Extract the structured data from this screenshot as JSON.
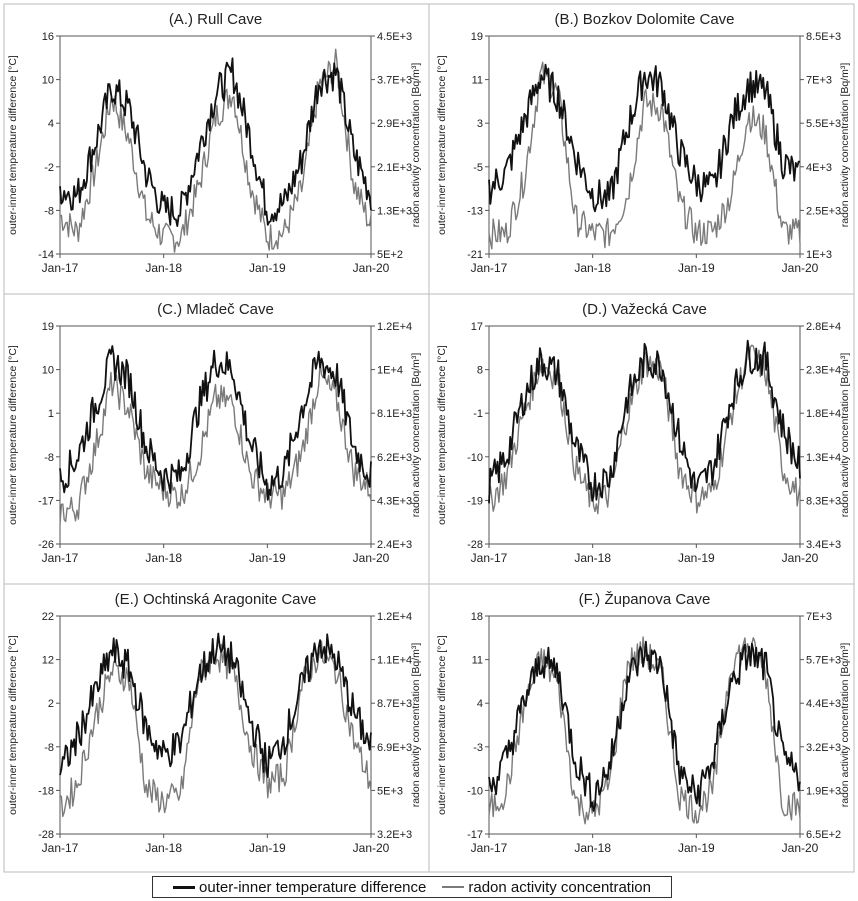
{
  "colors": {
    "temperature": "#111111",
    "radon": "#7a7a7a",
    "frame": "#bbbbbb"
  },
  "legend": {
    "temperature_label": "outer-inner temperature difference",
    "radon_label": "radon activity concentration"
  },
  "chart_data": [
    {
      "type": "line",
      "title": "(A.) Rull Cave",
      "ylabel": "outer-inner temperature difference [°C]",
      "y2label": "radon activity concentration [Bq/m³]",
      "x_ticks": [
        "Jan-17",
        "Jan-18",
        "Jan-19",
        "Jan-20"
      ],
      "y_ticks": [
        "-14",
        "-8",
        "-2",
        "4",
        "10",
        "16"
      ],
      "y2_ticks": [
        "5E+2",
        "1.3E+3",
        "2.1E+3",
        "2.9E+3",
        "3.7E+3",
        "4.5E+3"
      ],
      "ylim": [
        -14,
        16
      ],
      "y2lim": [
        500,
        4500
      ],
      "series": [
        {
          "name": "outer-inner temperature difference",
          "axis": "left",
          "x": [
            "2017-01",
            "2017-03",
            "2017-05",
            "2017-07",
            "2017-09",
            "2017-11",
            "2018-01",
            "2018-03",
            "2018-05",
            "2018-07",
            "2018-09",
            "2018-11",
            "2019-01",
            "2019-03",
            "2019-05",
            "2019-07",
            "2019-09",
            "2019-11",
            "2020-01"
          ],
          "values": [
            -5,
            -6,
            1,
            9,
            6,
            -3,
            -8,
            -8,
            0,
            8,
            11,
            2,
            -8,
            -7,
            -1,
            10,
            11,
            0,
            -6
          ]
        },
        {
          "name": "radon activity concentration",
          "axis": "right",
          "x": [
            "2017-01",
            "2017-03",
            "2017-05",
            "2017-07",
            "2017-09",
            "2017-11",
            "2018-01",
            "2018-03",
            "2018-05",
            "2018-07",
            "2018-09",
            "2018-11",
            "2019-01",
            "2019-03",
            "2019-05",
            "2019-07",
            "2019-09",
            "2019-11",
            "2020-01"
          ],
          "values": [
            1200,
            900,
            2000,
            3400,
            2600,
            1200,
            800,
            800,
            1700,
            3000,
            3500,
            1800,
            800,
            900,
            1700,
            3600,
            4000,
            1800,
            1000
          ]
        }
      ]
    },
    {
      "type": "line",
      "title": "(B.) Bozkov Dolomite Cave",
      "ylabel": "outer-inner temperature difference [°C]",
      "y2label": "radon activity concentration [Bq/m³]",
      "x_ticks": [
        "Jan-17",
        "Jan-18",
        "Jan-19",
        "Jan-20"
      ],
      "y_ticks": [
        "-21",
        "-13",
        "-5",
        "3",
        "11",
        "19"
      ],
      "y2_ticks": [
        "1E+3",
        "2.5E+3",
        "4E+3",
        "5.5E+3",
        "7E+3",
        "8.5E+3"
      ],
      "ylim": [
        -21,
        19
      ],
      "y2lim": [
        1000,
        8500
      ],
      "series": [
        {
          "name": "outer-inner temperature difference",
          "axis": "left",
          "x": [
            "2017-01",
            "2017-03",
            "2017-05",
            "2017-07",
            "2017-09",
            "2017-11",
            "2018-01",
            "2018-03",
            "2018-05",
            "2018-07",
            "2018-09",
            "2018-11",
            "2019-01",
            "2019-03",
            "2019-05",
            "2019-07",
            "2019-09",
            "2019-11",
            "2020-01"
          ],
          "values": [
            -9,
            -6,
            3,
            12,
            8,
            -3,
            -10,
            -11,
            2,
            12,
            10,
            -2,
            -8,
            -9,
            3,
            10,
            9,
            -4,
            -7
          ]
        },
        {
          "name": "radon activity concentration",
          "axis": "right",
          "x": [
            "2017-01",
            "2017-03",
            "2017-05",
            "2017-07",
            "2017-09",
            "2017-11",
            "2018-01",
            "2018-03",
            "2018-05",
            "2018-07",
            "2018-09",
            "2018-11",
            "2019-01",
            "2019-03",
            "2019-05",
            "2019-07",
            "2019-09",
            "2019-11",
            "2020-01"
          ],
          "values": [
            1700,
            1700,
            3500,
            7200,
            6500,
            2200,
            1700,
            1700,
            3000,
            6200,
            6000,
            2800,
            1700,
            1800,
            3000,
            5800,
            5200,
            1800,
            1700
          ]
        }
      ]
    },
    {
      "type": "line",
      "title": "(C.) Mladeč Cave",
      "ylabel": "outer-inner temperature difference [°C]",
      "y2label": "radon activity concentration [Bq/m³]",
      "x_ticks": [
        "Jan-17",
        "Jan-18",
        "Jan-19",
        "Jan-20"
      ],
      "y_ticks": [
        "-26",
        "-17",
        "-8",
        "1",
        "10",
        "19"
      ],
      "y2_ticks": [
        "2.4E+3",
        "4.3E+3",
        "6.2E+3",
        "8.1E+3",
        "1E+4",
        "1.2E+4"
      ],
      "ylim": [
        -26,
        19
      ],
      "y2lim": [
        2400,
        12000
      ],
      "series": [
        {
          "name": "outer-inner temperature difference",
          "axis": "left",
          "x": [
            "2017-01",
            "2017-03",
            "2017-05",
            "2017-07",
            "2017-09",
            "2017-11",
            "2018-01",
            "2018-03",
            "2018-05",
            "2018-07",
            "2018-09",
            "2018-11",
            "2019-01",
            "2019-03",
            "2019-05",
            "2019-07",
            "2019-09",
            "2019-11",
            "2020-01"
          ],
          "values": [
            -13,
            -8,
            2,
            12,
            8,
            -6,
            -12,
            -12,
            2,
            12,
            10,
            -5,
            -14,
            -11,
            2,
            12,
            9,
            -6,
            -12
          ]
        },
        {
          "name": "radon activity concentration",
          "axis": "right",
          "x": [
            "2017-01",
            "2017-03",
            "2017-05",
            "2017-07",
            "2017-09",
            "2017-11",
            "2018-01",
            "2018-03",
            "2018-05",
            "2018-07",
            "2018-09",
            "2018-11",
            "2019-01",
            "2019-03",
            "2019-05",
            "2019-07",
            "2019-09",
            "2019-11",
            "2020-01"
          ],
          "values": [
            3800,
            4000,
            6500,
            9500,
            8300,
            5500,
            4800,
            4500,
            6200,
            8800,
            8600,
            5500,
            4500,
            4600,
            6400,
            9800,
            8800,
            5600,
            4800
          ]
        }
      ]
    },
    {
      "type": "line",
      "title": "(D.) Važecká Cave",
      "ylabel": "outer-inner temperature difference [°C]",
      "y2label": "radon activity concentration [Bq/m³]",
      "x_ticks": [
        "Jan-17",
        "Jan-18",
        "Jan-19",
        "Jan-20"
      ],
      "y_ticks": [
        "-28",
        "-19",
        "-10",
        "-1",
        "8",
        "17"
      ],
      "y2_ticks": [
        "3.4E+3",
        "8.3E+3",
        "1.3E+4",
        "1.8E+4",
        "2.3E+4",
        "2.8E+4"
      ],
      "ylim": [
        -28,
        17
      ],
      "y2lim": [
        3400,
        28000
      ],
      "series": [
        {
          "name": "outer-inner temperature difference",
          "axis": "left",
          "x": [
            "2017-01",
            "2017-03",
            "2017-05",
            "2017-07",
            "2017-09",
            "2017-11",
            "2018-01",
            "2018-03",
            "2018-05",
            "2018-07",
            "2018-09",
            "2018-11",
            "2019-01",
            "2019-03",
            "2019-05",
            "2019-07",
            "2019-09",
            "2019-11",
            "2020-01"
          ],
          "values": [
            -16,
            -10,
            2,
            10,
            7,
            -8,
            -16,
            -14,
            2,
            10,
            9,
            -6,
            -17,
            -12,
            2,
            11,
            10,
            -4,
            -12
          ]
        },
        {
          "name": "radon activity concentration",
          "axis": "right",
          "x": [
            "2017-01",
            "2017-03",
            "2017-05",
            "2017-07",
            "2017-09",
            "2017-11",
            "2018-01",
            "2018-03",
            "2018-05",
            "2018-07",
            "2018-09",
            "2018-11",
            "2019-01",
            "2019-03",
            "2019-05",
            "2019-07",
            "2019-09",
            "2019-11",
            "2020-01"
          ],
          "values": [
            8000,
            11000,
            18000,
            24000,
            22000,
            12000,
            8000,
            9000,
            18000,
            24000,
            23000,
            12000,
            8500,
            9500,
            18000,
            25000,
            23000,
            12000,
            8500
          ]
        }
      ]
    },
    {
      "type": "line",
      "title": "(E.) Ochtinská Aragonite Cave",
      "ylabel": "outer-inner temperature difference [°C]",
      "y2label": "radon activity concentration [Bq/m³]",
      "x_ticks": [
        "Jan-17",
        "Jan-18",
        "Jan-19",
        "Jan-20"
      ],
      "y_ticks": [
        "-28",
        "-18",
        "-8",
        "2",
        "12",
        "22"
      ],
      "y2_ticks": [
        "3.2E+3",
        "5E+3",
        "6.9E+3",
        "8.7E+3",
        "1.1E+4",
        "1.2E+4"
      ],
      "ylim": [
        -28,
        22
      ],
      "y2lim": [
        3200,
        12000
      ],
      "series": [
        {
          "name": "outer-inner temperature difference",
          "axis": "left",
          "x": [
            "2017-01",
            "2017-03",
            "2017-05",
            "2017-07",
            "2017-09",
            "2017-11",
            "2018-01",
            "2018-03",
            "2018-05",
            "2018-07",
            "2018-09",
            "2018-11",
            "2019-01",
            "2019-03",
            "2019-05",
            "2019-07",
            "2019-09",
            "2019-11",
            "2020-01"
          ],
          "values": [
            -14,
            -6,
            4,
            14,
            10,
            -4,
            -10,
            -7,
            8,
            15,
            12,
            -2,
            -12,
            -6,
            6,
            16,
            12,
            0,
            -8
          ]
        },
        {
          "name": "radon activity concentration",
          "axis": "right",
          "x": [
            "2017-01",
            "2017-03",
            "2017-05",
            "2017-07",
            "2017-09",
            "2017-11",
            "2018-01",
            "2018-03",
            "2018-05",
            "2018-07",
            "2018-09",
            "2018-11",
            "2019-01",
            "2019-03",
            "2019-05",
            "2019-07",
            "2019-09",
            "2019-11",
            "2020-01"
          ],
          "values": [
            4200,
            5200,
            7800,
            9800,
            9500,
            5000,
            4500,
            4800,
            9500,
            10500,
            9800,
            6800,
            5200,
            5600,
            9200,
            10500,
            9800,
            7000,
            5200
          ]
        }
      ]
    },
    {
      "type": "line",
      "title": "(F.) Županova Cave",
      "ylabel": "outer-inner temperature difference [°C]",
      "y2label": "radon activity concentration [Bq/m³]",
      "x_ticks": [
        "Jan-17",
        "Jan-18",
        "Jan-19",
        "Jan-20"
      ],
      "y_ticks": [
        "-17",
        "-10",
        "-3",
        "4",
        "11",
        "18"
      ],
      "y2_ticks": [
        "6.5E+2",
        "1.9E+3",
        "3.2E+3",
        "4.4E+3",
        "5.7E+3",
        "7E+3"
      ],
      "ylim": [
        -17,
        18
      ],
      "y2lim": [
        650,
        7000
      ],
      "series": [
        {
          "name": "outer-inner temperature difference",
          "axis": "left",
          "x": [
            "2017-01",
            "2017-03",
            "2017-05",
            "2017-07",
            "2017-09",
            "2017-11",
            "2018-01",
            "2018-03",
            "2018-05",
            "2018-07",
            "2018-09",
            "2018-11",
            "2019-01",
            "2019-03",
            "2019-05",
            "2019-07",
            "2019-09",
            "2019-11",
            "2020-01"
          ],
          "values": [
            -10,
            -5,
            4,
            11,
            9,
            -5,
            -11,
            -6,
            8,
            12,
            10,
            -7,
            -11,
            -5,
            7,
            12,
            10,
            -5,
            -8
          ]
        },
        {
          "name": "radon activity concentration",
          "axis": "right",
          "x": [
            "2017-01",
            "2017-03",
            "2017-05",
            "2017-07",
            "2017-09",
            "2017-11",
            "2018-01",
            "2018-03",
            "2018-05",
            "2018-07",
            "2018-09",
            "2018-11",
            "2019-01",
            "2019-03",
            "2019-05",
            "2019-07",
            "2019-09",
            "2019-11",
            "2020-01"
          ],
          "values": [
            1300,
            1900,
            4300,
            5800,
            5000,
            1600,
            1200,
            2200,
            5600,
            6000,
            5300,
            1800,
            1300,
            2000,
            5600,
            6200,
            5400,
            1600,
            1400
          ]
        }
      ]
    }
  ]
}
